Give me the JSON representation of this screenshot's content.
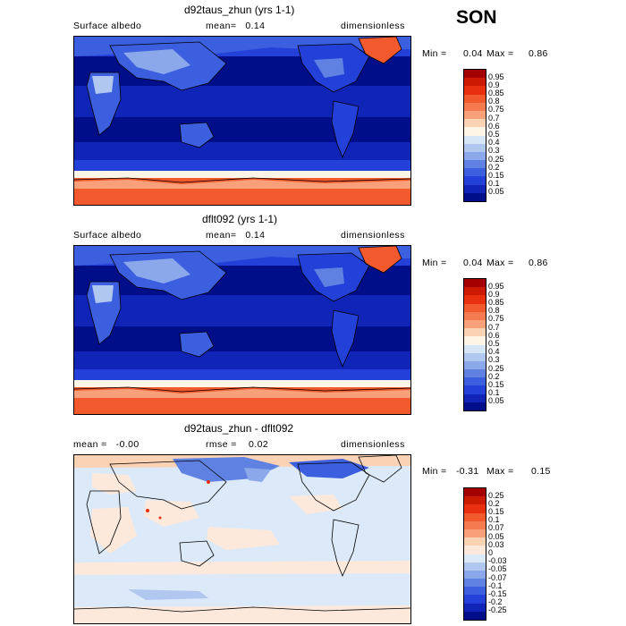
{
  "season": "SON",
  "panels": [
    {
      "title": "d92taus_zhun (yrs 1-1)",
      "left_label": "Surface albedo",
      "mid_label": "mean=   0.14",
      "right_label": "dimensionless",
      "min_label": "Min =",
      "min_value": "0.04",
      "max_label": "Max =",
      "max_value": "0.86",
      "colorbar_labels": [
        "0.95",
        "0.9",
        "0.85",
        "0.8",
        "0.75",
        "0.7",
        "0.6",
        "0.5",
        "0.4",
        "0.3",
        "0.25",
        "0.2",
        "0.15",
        "0.1",
        "0.05"
      ]
    },
    {
      "title": "dflt092 (yrs 1-1)",
      "left_label": "Surface albedo",
      "mid_label": "mean=   0.14",
      "right_label": "dimensionless",
      "min_label": "Min =",
      "min_value": "0.04",
      "max_label": "Max =",
      "max_value": "0.86",
      "colorbar_labels": [
        "0.95",
        "0.9",
        "0.85",
        "0.8",
        "0.75",
        "0.7",
        "0.6",
        "0.5",
        "0.4",
        "0.3",
        "0.25",
        "0.2",
        "0.15",
        "0.1",
        "0.05"
      ]
    },
    {
      "title": "d92taus_zhun - dflt092",
      "left_label": "mean =   -0.00",
      "mid_label": "rmse =    0.02",
      "right_label": "dimensionless",
      "min_label": "Min =",
      "min_value": "-0.31",
      "max_label": "Max =",
      "max_value": "0.15",
      "colorbar_labels": [
        "0.25",
        "0.2",
        "0.15",
        "0.1",
        "0.07",
        "0.05",
        "0.03",
        "0",
        "-0.03",
        "-0.05",
        "-0.07",
        "-0.1",
        "-0.15",
        "-0.2",
        "-0.25"
      ]
    }
  ],
  "colors": {
    "abs_scale": [
      "#a50000",
      "#cc1a00",
      "#e8300f",
      "#f25a2e",
      "#f57a50",
      "#f7a07a",
      "#fbd2b4",
      "#fff5e6",
      "#d6e6f7",
      "#b0c8f0",
      "#8aa8ea",
      "#5f82e2",
      "#3c5fe0",
      "#2340d8",
      "#1024b8",
      "#000e8a"
    ],
    "diff_scale": [
      "#a50000",
      "#cc1a00",
      "#e8300f",
      "#f25a2e",
      "#f57a50",
      "#f7a07a",
      "#fbd2b4",
      "#fde9dc",
      "#dce9f8",
      "#b0c8f0",
      "#8aa8ea",
      "#5f82e2",
      "#3c5fe0",
      "#2340d8",
      "#1024b8",
      "#000e8a"
    ]
  }
}
